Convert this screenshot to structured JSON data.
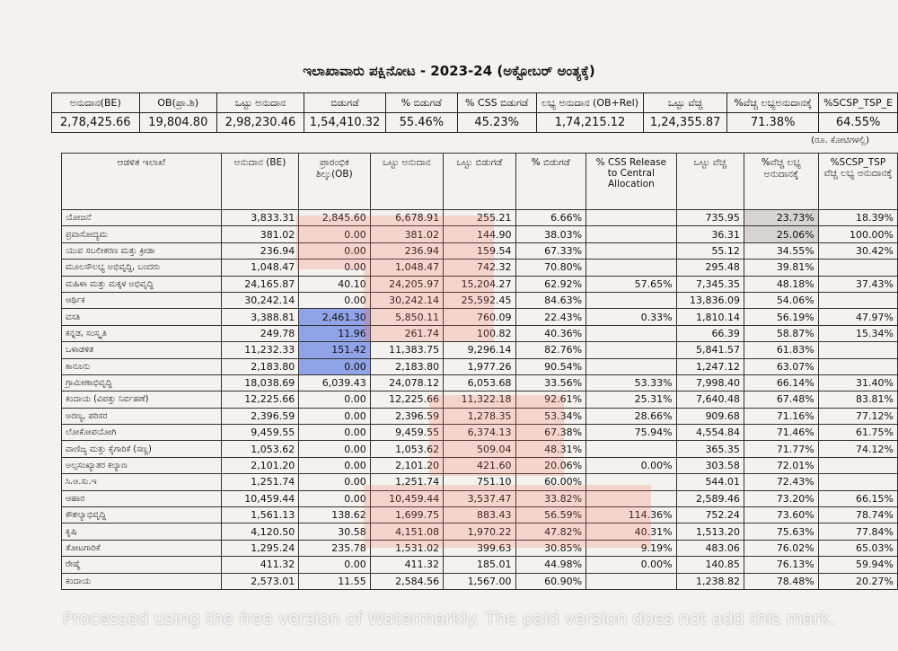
{
  "title": "ಇಲಾಖಾವಾರು ಪಕ್ಷಿನೋಟ - 2023-24 (ಅಕ್ಟೋಬರ್ ಅಂತ್ಯಕ್ಕೆ)",
  "summary": {
    "headers": [
      "ಅನುದಾನ(BE)",
      "OB(ಪ್ರಾ.ಶಿ)",
      "ಒಟ್ಟು ಅನುದಾನ",
      "ಬಿಡುಗಡೆ",
      "% ಬಿಡುಗಡೆ",
      "% CSS ಬಿಡುಗಡೆ",
      "ಲಭ್ಯ ಅನುದಾನ (OB+Rel)",
      "ಒಟ್ಟು ವೆಚ್ಚ",
      "%ವೆಚ್ಚ ಲಭ್ಯಅನುದಾನಕ್ಕೆ",
      "%SCSP_TSP_E"
    ],
    "values": [
      "2,78,425.66",
      "19,804.80",
      "2,98,230.46",
      "1,54,410.32",
      "55.46%",
      "45.23%",
      "1,74,215.12",
      "1,24,355.87",
      "71.38%",
      "64.55%"
    ]
  },
  "unit_note": "(ರೂ. ಕೋಟಿಗಳಲ್ಲಿ)",
  "table": {
    "headers": [
      "ಆಡಳಿತ ಇಲಾಖೆ",
      "ಅನುದಾನ (BE)",
      "ಪ್ರಾರಂಭಿಕ ಶಿಲ್ಕು(OB)",
      "ಒಟ್ಟು ಅನುದಾನ",
      "ಒಟ್ಟು ಬಿಡುಗಡೆ",
      "% ಬಿಡುಗಡೆ",
      "% CSS Release to Central Allocation",
      "ಒಟ್ಟು ವೆಚ್ಚ",
      "%ವೆಚ್ಚ ಲಭ್ಯ ಅನುದಾನಕ್ಕೆ",
      "%SCSP_TSP ವೆಚ್ಚ ಲಭ್ಯ ಅನುದಾನಕ್ಕೆ"
    ],
    "rows": [
      [
        "ಯೋಜನೆ",
        "3,833.31",
        "2,845.60",
        "6,678.91",
        "255.21",
        "6.66%",
        null,
        "735.95",
        "23.73%",
        "18.39%"
      ],
      [
        "ಪ್ರವಾಸೋದ್ಯಮ",
        "381.02",
        "0.00",
        "381.02",
        "144.90",
        "38.03%",
        null,
        "36.31",
        "25.06%",
        "100.00%"
      ],
      [
        "ಯುವ ಸಬಲೀಕರಣ ಮತ್ತು ಕ್ರೀಡಾ",
        "236.94",
        "0.00",
        "236.94",
        "159.54",
        "67.33%",
        null,
        "55.12",
        "34.55%",
        "30.42%"
      ],
      [
        "ಮೂಲಸೌಲಭ್ಯ ಅಭಿವೃದ್ಧಿ, ಬಂದರು",
        "1,048.47",
        "0.00",
        "1,048.47",
        "742.32",
        "70.80%",
        null,
        "295.48",
        "39.81%",
        null
      ],
      [
        "ಮಹಿಳಾ ಮತ್ತು ಮಕ್ಕಳ ಅಭಿವೃದ್ಧಿ",
        "24,165.87",
        "40.10",
        "24,205.97",
        "15,204.27",
        "62.92%",
        "57.65%",
        "7,345.35",
        "48.18%",
        "37.43%"
      ],
      [
        "ಆರ್ಥಿಕ",
        "30,242.14",
        "0.00",
        "30,242.14",
        "25,592.45",
        "84.63%",
        null,
        "13,836.09",
        "54.06%",
        null
      ],
      [
        "ವಸತಿ",
        "3,388.81",
        "2,461.30",
        "5,850.11",
        "760.09",
        "22.43%",
        "0.33%",
        "1,810.14",
        "56.19%",
        "47.97%"
      ],
      [
        "ಕನ್ನಡ, ಸಂಸ್ಕೃತಿ",
        "249.78",
        "11.96",
        "261.74",
        "100.82",
        "40.36%",
        null,
        "66.39",
        "58.87%",
        "15.34%"
      ],
      [
        "ಒಳಾಡಳಿತ",
        "11,232.33",
        "151.42",
        "11,383.75",
        "9,296.14",
        "82.76%",
        null,
        "5,841.57",
        "61.83%",
        null
      ],
      [
        "ಕಾನೂನು",
        "2,183.80",
        "0.00",
        "2,183.80",
        "1,977.26",
        "90.54%",
        null,
        "1,247.12",
        "63.07%",
        null
      ],
      [
        "ಗ್ರಾಮೀಣಾಭಿವೃದ್ಧಿ",
        "18,038.69",
        "6,039.43",
        "24,078.12",
        "6,053.68",
        "33.56%",
        "53.33%",
        "7,998.40",
        "66.14%",
        "31.40%"
      ],
      [
        "ಕಂದಾಯ (ವಿಪತ್ತು ನಿರ್ವಹಣೆ)",
        "12,225.66",
        "0.00",
        "12,225.66",
        "11,322.18",
        "92.61%",
        "25.31%",
        "7,640.48",
        "67.48%",
        "83.81%"
      ],
      [
        "ಅರಣ್ಯ, ಪರಿಸರ",
        "2,396.59",
        "0.00",
        "2,396.59",
        "1,278.35",
        "53.34%",
        "28.66%",
        "909.68",
        "71.16%",
        "77.12%"
      ],
      [
        "ಲೋಕೋಪಯೋಗಿ",
        "9,459.55",
        "0.00",
        "9,459.55",
        "6,374.13",
        "67.38%",
        "75.94%",
        "4,554.84",
        "71.46%",
        "61.75%"
      ],
      [
        "ವಾಣಿಜ್ಯ ಮತ್ತು ಕೈಗಾರಿಕೆ (ಸಣ್ಣ)",
        "1,053.62",
        "0.00",
        "1,053.62",
        "509.04",
        "48.31%",
        null,
        "365.35",
        "71.77%",
        "74.12%"
      ],
      [
        "ಅಲ್ಪಸಂಖ್ಯಾತರ ಕಲ್ಯಾಣ",
        "2,101.20",
        "0.00",
        "2,101.20",
        "421.60",
        "20.06%",
        "0.00%",
        "303.58",
        "72.01%",
        null
      ],
      [
        "ಸಿ.ಆ.ಸು.ಇ",
        "1,251.74",
        "0.00",
        "1,251.74",
        "751.10",
        "60.00%",
        null,
        "544.01",
        "72.43%",
        null
      ],
      [
        "ಆಹಾರ",
        "10,459.44",
        "0.00",
        "10,459.44",
        "3,537.47",
        "33.82%",
        null,
        "2,589.46",
        "73.20%",
        "66.15%"
      ],
      [
        "ಕೌಶಲ್ಯಾಭಿವೃದ್ಧಿ",
        "1,561.13",
        "138.62",
        "1,699.75",
        "883.43",
        "56.59%",
        "114.36%",
        "752.24",
        "73.60%",
        "78.74%"
      ],
      [
        "ಕೃಷಿ",
        "4,120.50",
        "30.58",
        "4,151.08",
        "1,970.22",
        "47.82%",
        "40.31%",
        "1,513.20",
        "75.63%",
        "77.84%"
      ],
      [
        "ತೋಟಗಾರಿಕೆ",
        "1,295.24",
        "235.78",
        "1,531.02",
        "399.63",
        "30.85%",
        "9.19%",
        "483.06",
        "76.02%",
        "65.03%"
      ],
      [
        "ರೇಷ್ಮೆ",
        "411.32",
        "0.00",
        "411.32",
        "185.01",
        "44.98%",
        "0.00%",
        "140.85",
        "76.13%",
        "59.94%"
      ],
      [
        "ಕಂದಾಯ",
        "2,573.01",
        "11.55",
        "2,584.56",
        "1,567.00",
        "60.90%",
        null,
        "1,238.82",
        "78.48%",
        "20.27%"
      ]
    ]
  },
  "watermark": "Processed using the free version of Watermarkly. The paid version does not add this mark."
}
